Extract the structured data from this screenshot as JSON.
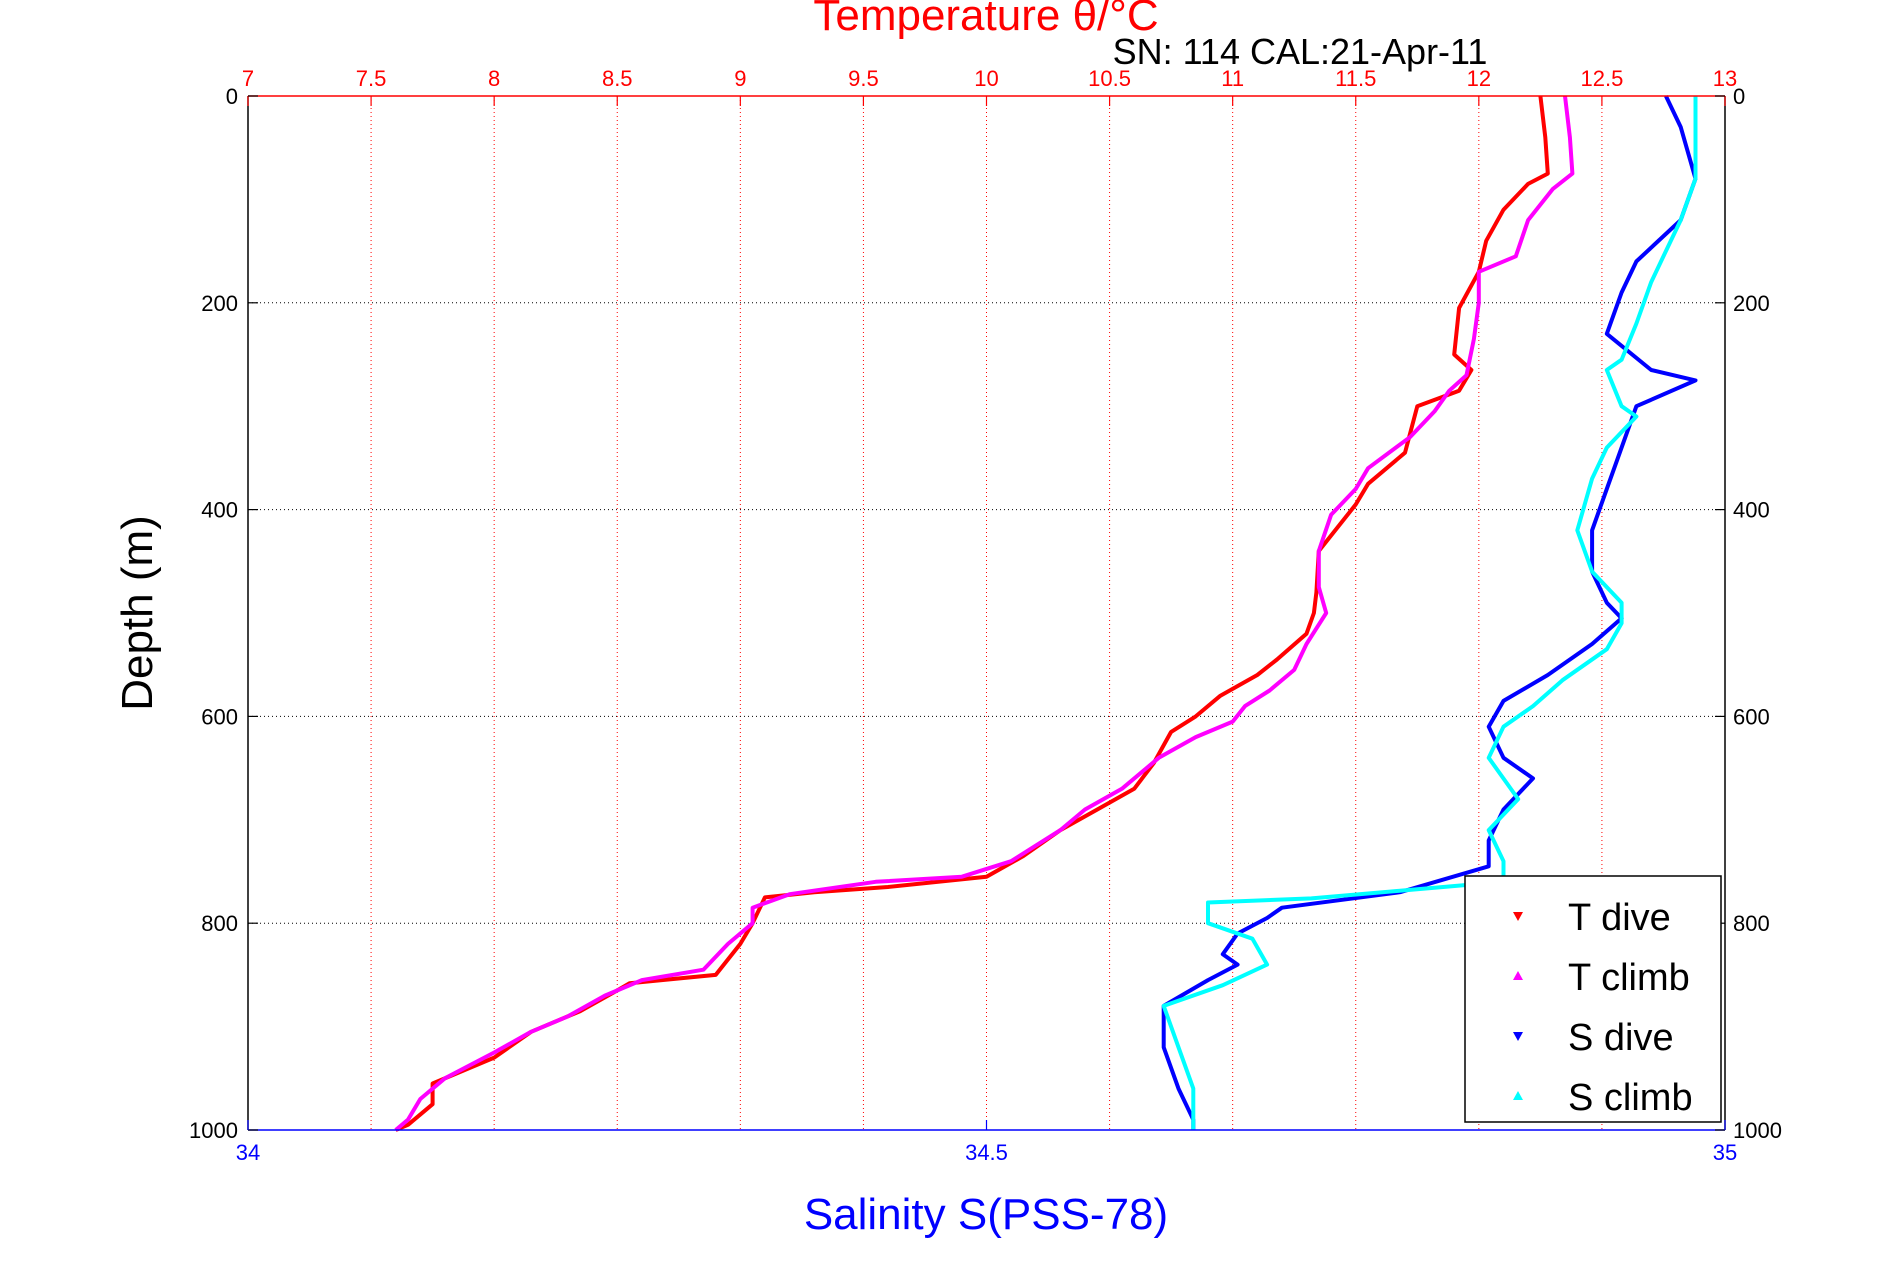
{
  "chart_data": {
    "type": "line",
    "title": "Temperature θ/°C",
    "subtitle": "SN: 114  CAL:21-Apr-11",
    "ylabel": "Depth (m)",
    "xlabel_bottom": "Salinity S(PSS-78)",
    "xlabel_top": "Temperature θ/°C",
    "top_axis": {
      "label": "Temperature θ/°C",
      "range": [
        7,
        13
      ],
      "ticks": [
        "7",
        "7.5",
        "8",
        "8.5",
        "9",
        "9.5",
        "10",
        "10.5",
        "11",
        "11.5",
        "12",
        "12.5",
        "13"
      ],
      "color": "#ff0000"
    },
    "bottom_axis": {
      "label": "Salinity S(PSS-78)",
      "range": [
        34,
        35
      ],
      "ticks": [
        "34",
        "34.5",
        "35"
      ],
      "color": "#0000ff"
    },
    "y_axis": {
      "label": "Depth (m)",
      "range": [
        0,
        1000
      ],
      "reversed": true,
      "ticks": [
        "0",
        "200",
        "400",
        "600",
        "800",
        "1000"
      ]
    },
    "grid": true,
    "legend": {
      "placement": "bottom-right",
      "entries": [
        "T dive",
        "T climb",
        "S dive",
        "S climb"
      ]
    },
    "series": [
      {
        "name": "T dive",
        "axis": "temperature",
        "color": "#ff0000",
        "points": [
          [
            12.25,
            0
          ],
          [
            12.27,
            40
          ],
          [
            12.28,
            75
          ],
          [
            12.2,
            85
          ],
          [
            12.1,
            110
          ],
          [
            12.03,
            140
          ],
          [
            12.0,
            170
          ],
          [
            11.92,
            205
          ],
          [
            11.9,
            250
          ],
          [
            11.97,
            265
          ],
          [
            11.92,
            285
          ],
          [
            11.75,
            300
          ],
          [
            11.7,
            345
          ],
          [
            11.55,
            375
          ],
          [
            11.5,
            395
          ],
          [
            11.35,
            440
          ],
          [
            11.34,
            480
          ],
          [
            11.33,
            500
          ],
          [
            11.3,
            520
          ],
          [
            11.18,
            545
          ],
          [
            11.1,
            560
          ],
          [
            10.95,
            580
          ],
          [
            10.85,
            600
          ],
          [
            10.75,
            615
          ],
          [
            10.68,
            645
          ],
          [
            10.6,
            670
          ],
          [
            10.45,
            690
          ],
          [
            10.3,
            710
          ],
          [
            10.15,
            735
          ],
          [
            10.0,
            755
          ],
          [
            9.6,
            765
          ],
          [
            9.3,
            770
          ],
          [
            9.1,
            775
          ],
          [
            9.05,
            800
          ],
          [
            9.0,
            820
          ],
          [
            8.9,
            850
          ],
          [
            8.55,
            858
          ],
          [
            8.5,
            865
          ],
          [
            8.35,
            885
          ],
          [
            8.15,
            905
          ],
          [
            8.0,
            930
          ],
          [
            7.75,
            955
          ],
          [
            7.75,
            975
          ],
          [
            7.65,
            995
          ],
          [
            7.6,
            1000
          ]
        ]
      },
      {
        "name": "T climb",
        "axis": "temperature",
        "color": "#ff00ff",
        "points": [
          [
            12.35,
            0
          ],
          [
            12.37,
            40
          ],
          [
            12.38,
            75
          ],
          [
            12.3,
            90
          ],
          [
            12.2,
            120
          ],
          [
            12.15,
            155
          ],
          [
            12.0,
            170
          ],
          [
            12.0,
            200
          ],
          [
            11.98,
            235
          ],
          [
            11.95,
            270
          ],
          [
            11.88,
            285
          ],
          [
            11.82,
            305
          ],
          [
            11.72,
            330
          ],
          [
            11.55,
            360
          ],
          [
            11.5,
            380
          ],
          [
            11.4,
            405
          ],
          [
            11.35,
            440
          ],
          [
            11.35,
            475
          ],
          [
            11.38,
            500
          ],
          [
            11.3,
            530
          ],
          [
            11.25,
            555
          ],
          [
            11.15,
            575
          ],
          [
            11.05,
            590
          ],
          [
            11.0,
            605
          ],
          [
            10.85,
            620
          ],
          [
            10.7,
            640
          ],
          [
            10.55,
            670
          ],
          [
            10.4,
            690
          ],
          [
            10.3,
            710
          ],
          [
            10.1,
            740
          ],
          [
            9.9,
            755
          ],
          [
            9.55,
            760
          ],
          [
            9.2,
            772
          ],
          [
            9.05,
            785
          ],
          [
            9.05,
            800
          ],
          [
            8.95,
            820
          ],
          [
            8.85,
            845
          ],
          [
            8.6,
            855
          ],
          [
            8.45,
            870
          ],
          [
            8.3,
            890
          ],
          [
            8.15,
            905
          ],
          [
            8.0,
            925
          ],
          [
            7.8,
            950
          ],
          [
            7.7,
            970
          ],
          [
            7.65,
            990
          ],
          [
            7.6,
            1000
          ]
        ]
      },
      {
        "name": "S dive",
        "axis": "salinity",
        "color": "#0000ff",
        "points": [
          [
            34.96,
            0
          ],
          [
            34.97,
            30
          ],
          [
            34.98,
            80
          ],
          [
            34.97,
            120
          ],
          [
            34.94,
            160
          ],
          [
            34.93,
            190
          ],
          [
            34.92,
            230
          ],
          [
            34.95,
            265
          ],
          [
            34.98,
            275
          ],
          [
            34.94,
            300
          ],
          [
            34.93,
            340
          ],
          [
            34.92,
            380
          ],
          [
            34.91,
            420
          ],
          [
            34.91,
            460
          ],
          [
            34.92,
            490
          ],
          [
            34.93,
            505
          ],
          [
            34.91,
            530
          ],
          [
            34.88,
            560
          ],
          [
            34.85,
            585
          ],
          [
            34.84,
            610
          ],
          [
            34.85,
            640
          ],
          [
            34.87,
            660
          ],
          [
            34.85,
            690
          ],
          [
            34.84,
            720
          ],
          [
            34.84,
            745
          ],
          [
            34.78,
            770
          ],
          [
            34.7,
            785
          ],
          [
            34.69,
            795
          ],
          [
            34.67,
            810
          ],
          [
            34.66,
            830
          ],
          [
            34.67,
            840
          ],
          [
            34.65,
            855
          ],
          [
            34.62,
            880
          ],
          [
            34.62,
            920
          ],
          [
            34.63,
            960
          ],
          [
            34.64,
            990
          ],
          [
            34.64,
            1000
          ]
        ]
      },
      {
        "name": "S climb",
        "axis": "salinity",
        "color": "#00ffff",
        "points": [
          [
            34.98,
            0
          ],
          [
            34.98,
            40
          ],
          [
            34.98,
            80
          ],
          [
            34.97,
            120
          ],
          [
            34.96,
            150
          ],
          [
            34.95,
            180
          ],
          [
            34.94,
            220
          ],
          [
            34.93,
            255
          ],
          [
            34.92,
            265
          ],
          [
            34.93,
            300
          ],
          [
            34.94,
            310
          ],
          [
            34.92,
            340
          ],
          [
            34.91,
            370
          ],
          [
            34.9,
            420
          ],
          [
            34.91,
            460
          ],
          [
            34.93,
            490
          ],
          [
            34.93,
            510
          ],
          [
            34.92,
            535
          ],
          [
            34.89,
            565
          ],
          [
            34.87,
            590
          ],
          [
            34.85,
            610
          ],
          [
            34.84,
            640
          ],
          [
            34.86,
            680
          ],
          [
            34.84,
            710
          ],
          [
            34.85,
            740
          ],
          [
            34.85,
            760
          ],
          [
            34.72,
            776
          ],
          [
            34.65,
            780
          ],
          [
            34.65,
            800
          ],
          [
            34.68,
            815
          ],
          [
            34.69,
            840
          ],
          [
            34.66,
            860
          ],
          [
            34.62,
            880
          ],
          [
            34.63,
            920
          ],
          [
            34.64,
            960
          ],
          [
            34.64,
            990
          ],
          [
            34.64,
            1000
          ]
        ]
      }
    ]
  }
}
